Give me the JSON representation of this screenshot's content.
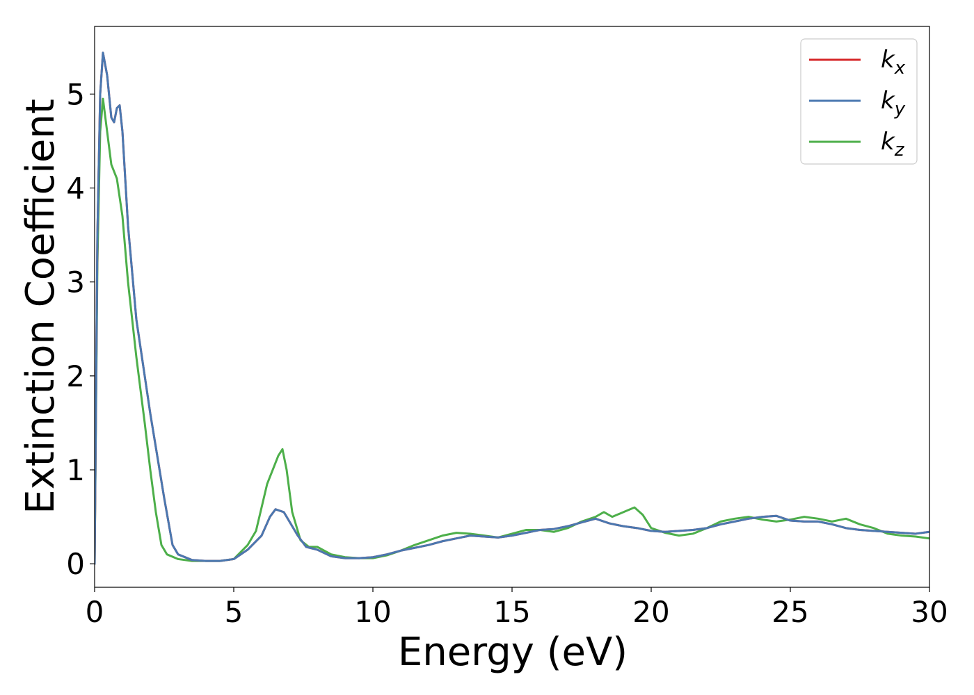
{
  "chart_data": {
    "type": "line",
    "title": "",
    "xlabel": "Energy (eV)",
    "ylabel": "Extinction Coefficient",
    "xlim": [
      0,
      30
    ],
    "ylim": [
      -0.25,
      5.72
    ],
    "xticks": [
      0,
      5,
      10,
      15,
      20,
      25,
      30
    ],
    "yticks": [
      0,
      1,
      2,
      3,
      4,
      5
    ],
    "grid": false,
    "legend_position": "top-right",
    "series": [
      {
        "name": "k_x",
        "label_base": "k",
        "label_sub": "x",
        "color": "#d62728",
        "x": [
          0,
          0.1,
          0.2,
          0.3,
          0.45,
          0.6,
          0.7,
          0.8,
          0.9,
          1.0,
          1.2,
          1.5,
          2.0,
          2.5,
          2.8,
          3.0,
          3.5,
          4.0,
          4.5,
          5.0,
          5.5,
          6.0,
          6.3,
          6.5,
          6.8,
          7.0,
          7.3,
          7.6,
          8.0,
          8.5,
          9.0,
          9.5,
          10.0,
          10.5,
          11.0,
          11.5,
          12.0,
          12.5,
          13.0,
          13.5,
          14.0,
          14.5,
          15.0,
          15.5,
          16.0,
          16.5,
          17.0,
          17.5,
          18.0,
          18.5,
          19.0,
          19.5,
          20.0,
          20.5,
          21.0,
          21.5,
          22.0,
          22.5,
          23.0,
          23.5,
          24.0,
          24.5,
          25.0,
          25.5,
          26.0,
          26.5,
          27.0,
          27.5,
          28.0,
          28.5,
          29.0,
          29.5,
          30.0
        ],
        "y": [
          0.0,
          3.5,
          5.0,
          5.44,
          5.2,
          4.75,
          4.7,
          4.85,
          4.88,
          4.6,
          3.6,
          2.6,
          1.6,
          0.7,
          0.2,
          0.1,
          0.04,
          0.03,
          0.03,
          0.05,
          0.15,
          0.3,
          0.5,
          0.58,
          0.55,
          0.45,
          0.3,
          0.18,
          0.15,
          0.08,
          0.06,
          0.06,
          0.07,
          0.1,
          0.14,
          0.17,
          0.2,
          0.24,
          0.27,
          0.3,
          0.29,
          0.28,
          0.3,
          0.33,
          0.36,
          0.37,
          0.4,
          0.44,
          0.48,
          0.43,
          0.4,
          0.38,
          0.35,
          0.34,
          0.35,
          0.36,
          0.38,
          0.42,
          0.45,
          0.48,
          0.5,
          0.51,
          0.46,
          0.45,
          0.45,
          0.42,
          0.38,
          0.36,
          0.35,
          0.34,
          0.33,
          0.32,
          0.34
        ]
      },
      {
        "name": "k_y",
        "label_base": "k",
        "label_sub": "y",
        "color": "#4a78b0",
        "x": [
          0,
          0.1,
          0.2,
          0.3,
          0.45,
          0.6,
          0.7,
          0.8,
          0.9,
          1.0,
          1.2,
          1.5,
          2.0,
          2.5,
          2.8,
          3.0,
          3.5,
          4.0,
          4.5,
          5.0,
          5.5,
          6.0,
          6.3,
          6.5,
          6.8,
          7.0,
          7.3,
          7.6,
          8.0,
          8.5,
          9.0,
          9.5,
          10.0,
          10.5,
          11.0,
          11.5,
          12.0,
          12.5,
          13.0,
          13.5,
          14.0,
          14.5,
          15.0,
          15.5,
          16.0,
          16.5,
          17.0,
          17.5,
          18.0,
          18.5,
          19.0,
          19.5,
          20.0,
          20.5,
          21.0,
          21.5,
          22.0,
          22.5,
          23.0,
          23.5,
          24.0,
          24.5,
          25.0,
          25.5,
          26.0,
          26.5,
          27.0,
          27.5,
          28.0,
          28.5,
          29.0,
          29.5,
          30.0
        ],
        "y": [
          0.0,
          3.5,
          5.0,
          5.44,
          5.2,
          4.75,
          4.7,
          4.85,
          4.88,
          4.6,
          3.6,
          2.6,
          1.6,
          0.7,
          0.2,
          0.1,
          0.04,
          0.03,
          0.03,
          0.05,
          0.15,
          0.3,
          0.5,
          0.58,
          0.55,
          0.45,
          0.3,
          0.18,
          0.15,
          0.08,
          0.06,
          0.06,
          0.07,
          0.1,
          0.14,
          0.17,
          0.2,
          0.24,
          0.27,
          0.3,
          0.29,
          0.28,
          0.3,
          0.33,
          0.36,
          0.37,
          0.4,
          0.44,
          0.48,
          0.43,
          0.4,
          0.38,
          0.35,
          0.34,
          0.35,
          0.36,
          0.38,
          0.42,
          0.45,
          0.48,
          0.5,
          0.51,
          0.46,
          0.45,
          0.45,
          0.42,
          0.38,
          0.36,
          0.35,
          0.34,
          0.33,
          0.32,
          0.34
        ]
      },
      {
        "name": "k_z",
        "label_base": "k",
        "label_sub": "z",
        "color": "#4daf4a",
        "x": [
          0,
          0.1,
          0.2,
          0.3,
          0.45,
          0.6,
          0.8,
          1.0,
          1.2,
          1.5,
          1.8,
          2.0,
          2.2,
          2.4,
          2.6,
          3.0,
          3.5,
          4.0,
          4.5,
          5.0,
          5.5,
          5.8,
          6.0,
          6.2,
          6.4,
          6.6,
          6.75,
          6.9,
          7.1,
          7.4,
          7.7,
          8.0,
          8.5,
          9.0,
          9.5,
          10.0,
          10.5,
          11.0,
          11.5,
          12.0,
          12.5,
          13.0,
          13.5,
          14.0,
          14.5,
          15.0,
          15.5,
          16.0,
          16.5,
          17.0,
          17.5,
          18.0,
          18.3,
          18.6,
          19.0,
          19.4,
          19.7,
          20.0,
          20.5,
          21.0,
          21.5,
          22.0,
          22.5,
          23.0,
          23.5,
          24.0,
          24.5,
          25.0,
          25.5,
          26.0,
          26.5,
          27.0,
          27.5,
          28.0,
          28.5,
          29.0,
          29.5,
          30.0
        ],
        "y": [
          0.0,
          3.2,
          4.6,
          4.95,
          4.6,
          4.25,
          4.1,
          3.7,
          3.0,
          2.2,
          1.5,
          1.0,
          0.55,
          0.2,
          0.1,
          0.05,
          0.03,
          0.03,
          0.03,
          0.05,
          0.2,
          0.35,
          0.6,
          0.85,
          1.0,
          1.15,
          1.22,
          1.0,
          0.55,
          0.25,
          0.18,
          0.18,
          0.1,
          0.07,
          0.06,
          0.06,
          0.09,
          0.14,
          0.2,
          0.25,
          0.3,
          0.33,
          0.32,
          0.3,
          0.28,
          0.32,
          0.36,
          0.36,
          0.34,
          0.38,
          0.45,
          0.5,
          0.55,
          0.5,
          0.55,
          0.6,
          0.52,
          0.38,
          0.33,
          0.3,
          0.32,
          0.38,
          0.45,
          0.48,
          0.5,
          0.47,
          0.45,
          0.47,
          0.5,
          0.48,
          0.45,
          0.48,
          0.42,
          0.38,
          0.32,
          0.3,
          0.29,
          0.27
        ]
      }
    ]
  }
}
